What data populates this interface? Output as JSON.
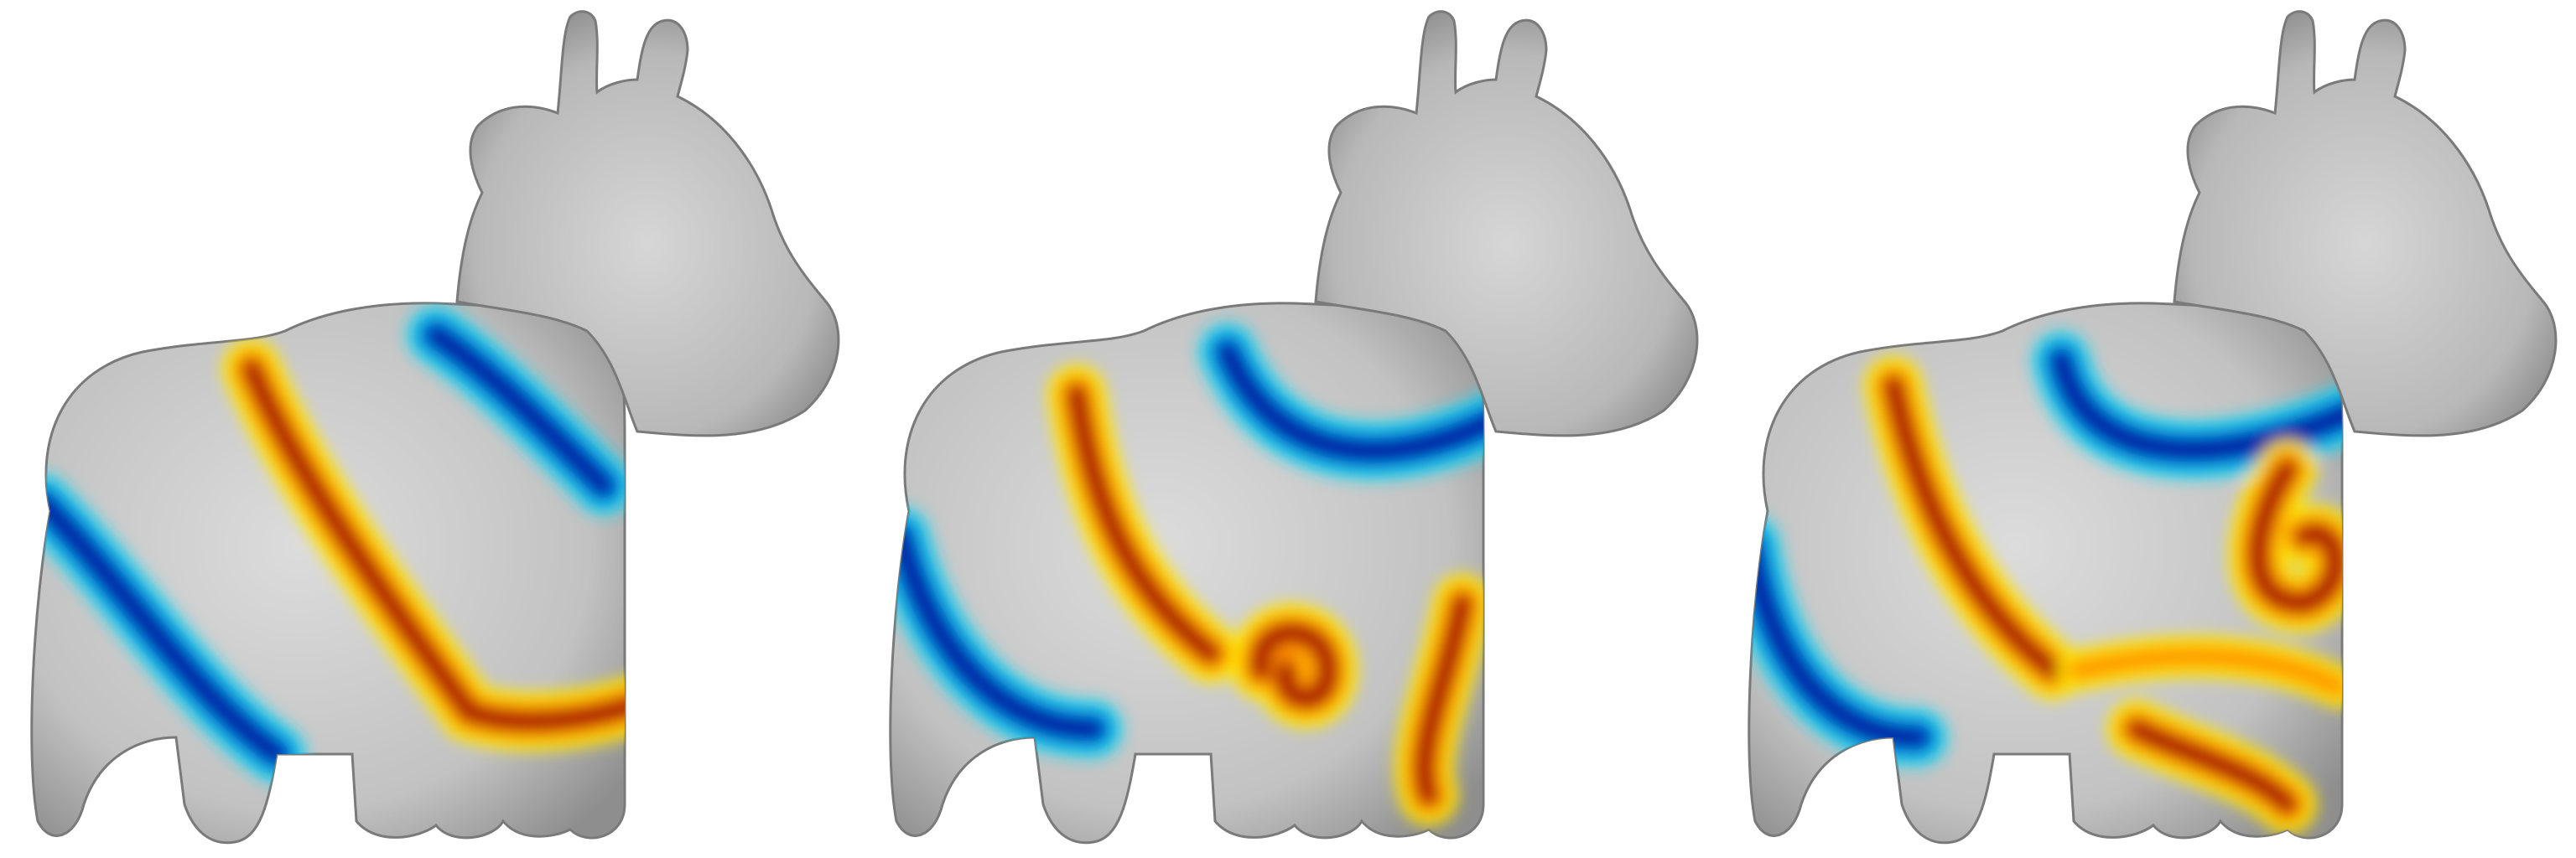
{
  "figure": {
    "panels": [
      {
        "id": "panel-1",
        "description_visible_text": ""
      },
      {
        "id": "panel-2",
        "description_visible_text": ""
      },
      {
        "id": "panel-3",
        "description_visible_text": ""
      }
    ],
    "colors": {
      "background": "#ffffff",
      "body_gray": "#c4c4c4",
      "warm_red": "#a40000",
      "warm_yellow": "#ffe800",
      "cool_blue": "#0010a0",
      "cool_cyan": "#20d8f0"
    }
  }
}
